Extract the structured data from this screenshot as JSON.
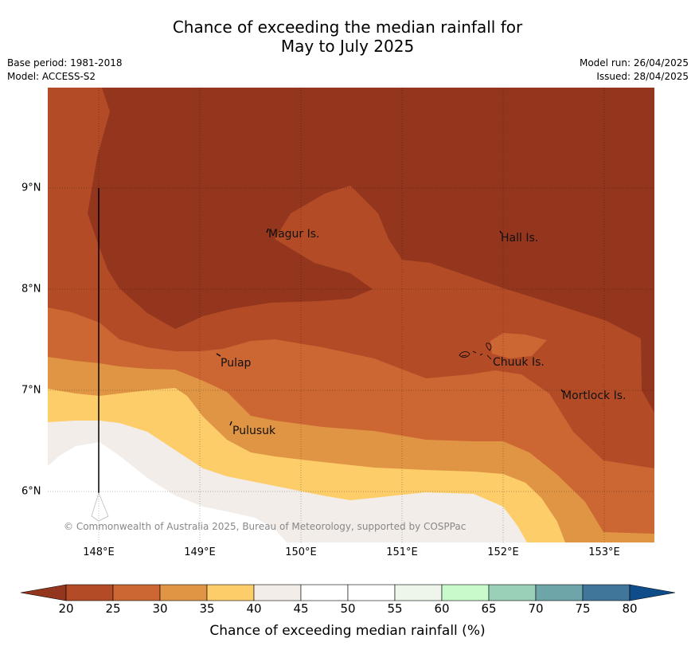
{
  "title_line1": "Chance of exceeding the median rainfall for",
  "title_line2": "May to July 2025",
  "base_period": "Base period: 1981-2018",
  "model": "Model: ACCESS-S2",
  "model_run": "Model run: 26/04/2025",
  "issued": "Issued: 28/04/2025",
  "copyright": "© Commonwealth of Australia 2025, Bureau of Meteorology, supported by COSPPac",
  "lon_labels": [
    "148°E",
    "149°E",
    "150°E",
    "151°E",
    "152°E",
    "153°E"
  ],
  "lat_labels": [
    "9°N",
    "8°N",
    "7°N",
    "6°N"
  ],
  "places": [
    {
      "name": "Magur Is."
    },
    {
      "name": "Hall Is."
    },
    {
      "name": "Pulap"
    },
    {
      "name": "Chuuk Is."
    },
    {
      "name": "Mortlock Is."
    },
    {
      "name": "Pulusuk"
    }
  ],
  "colorbar": {
    "label": "Chance of exceeding median rainfall (%)",
    "ticks": [
      "20",
      "25",
      "30",
      "35",
      "40",
      "45",
      "50",
      "55",
      "60",
      "65",
      "70",
      "75",
      "80"
    ],
    "colors": [
      "#b34c26",
      "#cc6633",
      "#e09545",
      "#fdcd6a",
      "#f2ede8",
      "#ffffff",
      "#ffffff",
      "#eef5ea",
      "#c8facc",
      "#9acfb8",
      "#6ea5a9",
      "#3f769a"
    ],
    "under_color": "#94351d",
    "over_color": "#0f4d8a"
  }
}
